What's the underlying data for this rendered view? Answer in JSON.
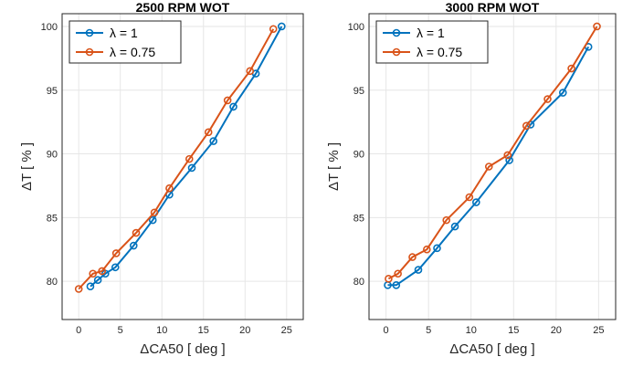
{
  "chart_data": [
    {
      "type": "line",
      "title": "2500 RPM WOT",
      "xlabel": "ΔCA50 [ deg ]",
      "ylabel": "ΔT [ % ]",
      "xlim": [
        -2,
        27
      ],
      "ylim": [
        77,
        101
      ],
      "xticks": [
        "0",
        "5",
        "10",
        "15",
        "20",
        "25"
      ],
      "yticks": [
        "80",
        "85",
        "90",
        "95",
        "100"
      ],
      "grid": true,
      "legend_position": "top-left",
      "series": [
        {
          "name": "λ = 1",
          "color": "#0072BD",
          "x": [
            1.4,
            2.3,
            3.2,
            4.4,
            6.6,
            8.9,
            10.9,
            13.6,
            16.2,
            18.6,
            21.3,
            24.4
          ],
          "y": [
            79.6,
            80.1,
            80.6,
            81.1,
            82.8,
            84.8,
            86.8,
            88.9,
            91.0,
            93.7,
            96.3,
            100.0
          ]
        },
        {
          "name": "λ = 0.75",
          "color": "#D95319",
          "x": [
            0.0,
            1.7,
            2.8,
            4.5,
            6.9,
            9.1,
            10.9,
            13.3,
            15.6,
            17.9,
            20.6,
            23.4
          ],
          "y": [
            79.4,
            80.6,
            80.8,
            82.2,
            83.8,
            85.4,
            87.3,
            89.6,
            91.7,
            94.2,
            96.5,
            99.8
          ]
        }
      ]
    },
    {
      "type": "line",
      "title": "3000 RPM WOT",
      "xlabel": "ΔCA50 [ deg ]",
      "ylabel": "ΔT [ % ]",
      "xlim": [
        -2,
        27
      ],
      "ylim": [
        77,
        101
      ],
      "xticks": [
        "0",
        "5",
        "10",
        "15",
        "20",
        "25"
      ],
      "yticks": [
        "80",
        "85",
        "90",
        "95",
        "100"
      ],
      "grid": true,
      "legend_position": "top-left",
      "series": [
        {
          "name": "λ = 1",
          "color": "#0072BD",
          "x": [
            0.2,
            1.2,
            3.8,
            6.0,
            8.1,
            10.6,
            14.5,
            17.0,
            20.8,
            23.8
          ],
          "y": [
            79.7,
            79.7,
            80.9,
            82.6,
            84.3,
            86.2,
            89.5,
            92.3,
            94.8,
            98.4
          ]
        },
        {
          "name": "λ = 0.75",
          "color": "#D95319",
          "x": [
            0.3,
            1.4,
            3.1,
            4.8,
            7.1,
            9.8,
            12.1,
            14.3,
            16.5,
            19.0,
            21.8,
            24.8
          ],
          "y": [
            80.2,
            80.6,
            81.9,
            82.5,
            84.8,
            86.6,
            89.0,
            89.9,
            92.2,
            94.3,
            96.7,
            100.0
          ]
        }
      ]
    }
  ]
}
